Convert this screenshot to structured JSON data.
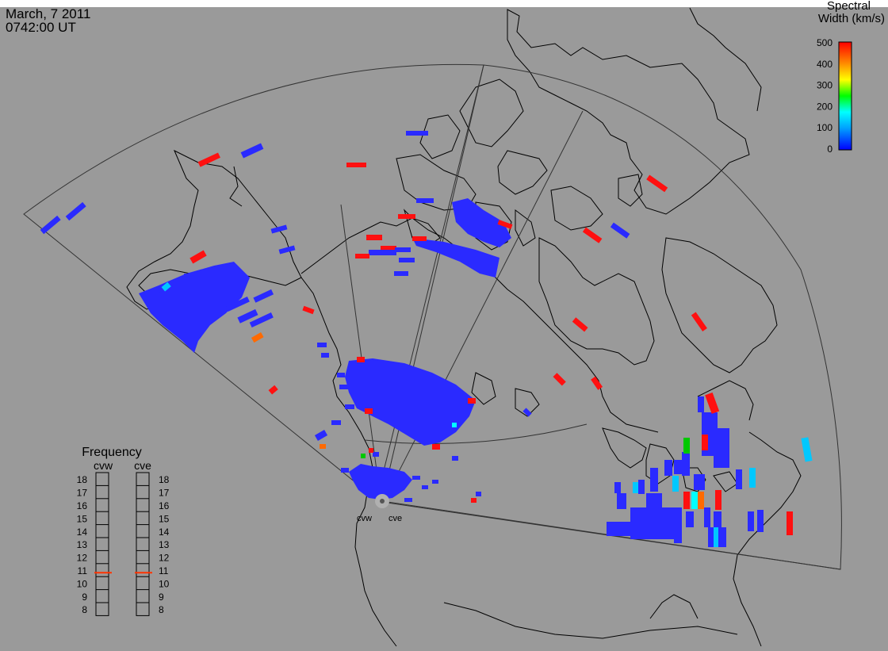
{
  "header": {
    "date": "March, 7 2011",
    "time": "0742:00 UT"
  },
  "colorbar": {
    "title_line1": "Spectral",
    "title_line2": "Width (km/s)",
    "ticks": [
      "500",
      "400",
      "300",
      "200",
      "100",
      "0"
    ],
    "colors": [
      "#ff0000",
      "#ff8c00",
      "#ffff00",
      "#00ff00",
      "#00ffff",
      "#0000ff"
    ]
  },
  "frequency_panel": {
    "title": "Frequency",
    "left_label": "cvw",
    "right_label": "cve",
    "scale": [
      "18",
      "17",
      "16",
      "15",
      "14",
      "13",
      "12",
      "11",
      "10",
      "9",
      "8"
    ],
    "cvw_mhz": 10.8,
    "cve_mhz": 10.8
  },
  "radars": {
    "cvw_label": "cvw",
    "cve_label": "cve"
  },
  "colors": {
    "background": "#9a9a9a",
    "scatter_low": "#2a2aff",
    "scatter_high": "#ff1010",
    "frequency_marker": "#ff3300"
  }
}
